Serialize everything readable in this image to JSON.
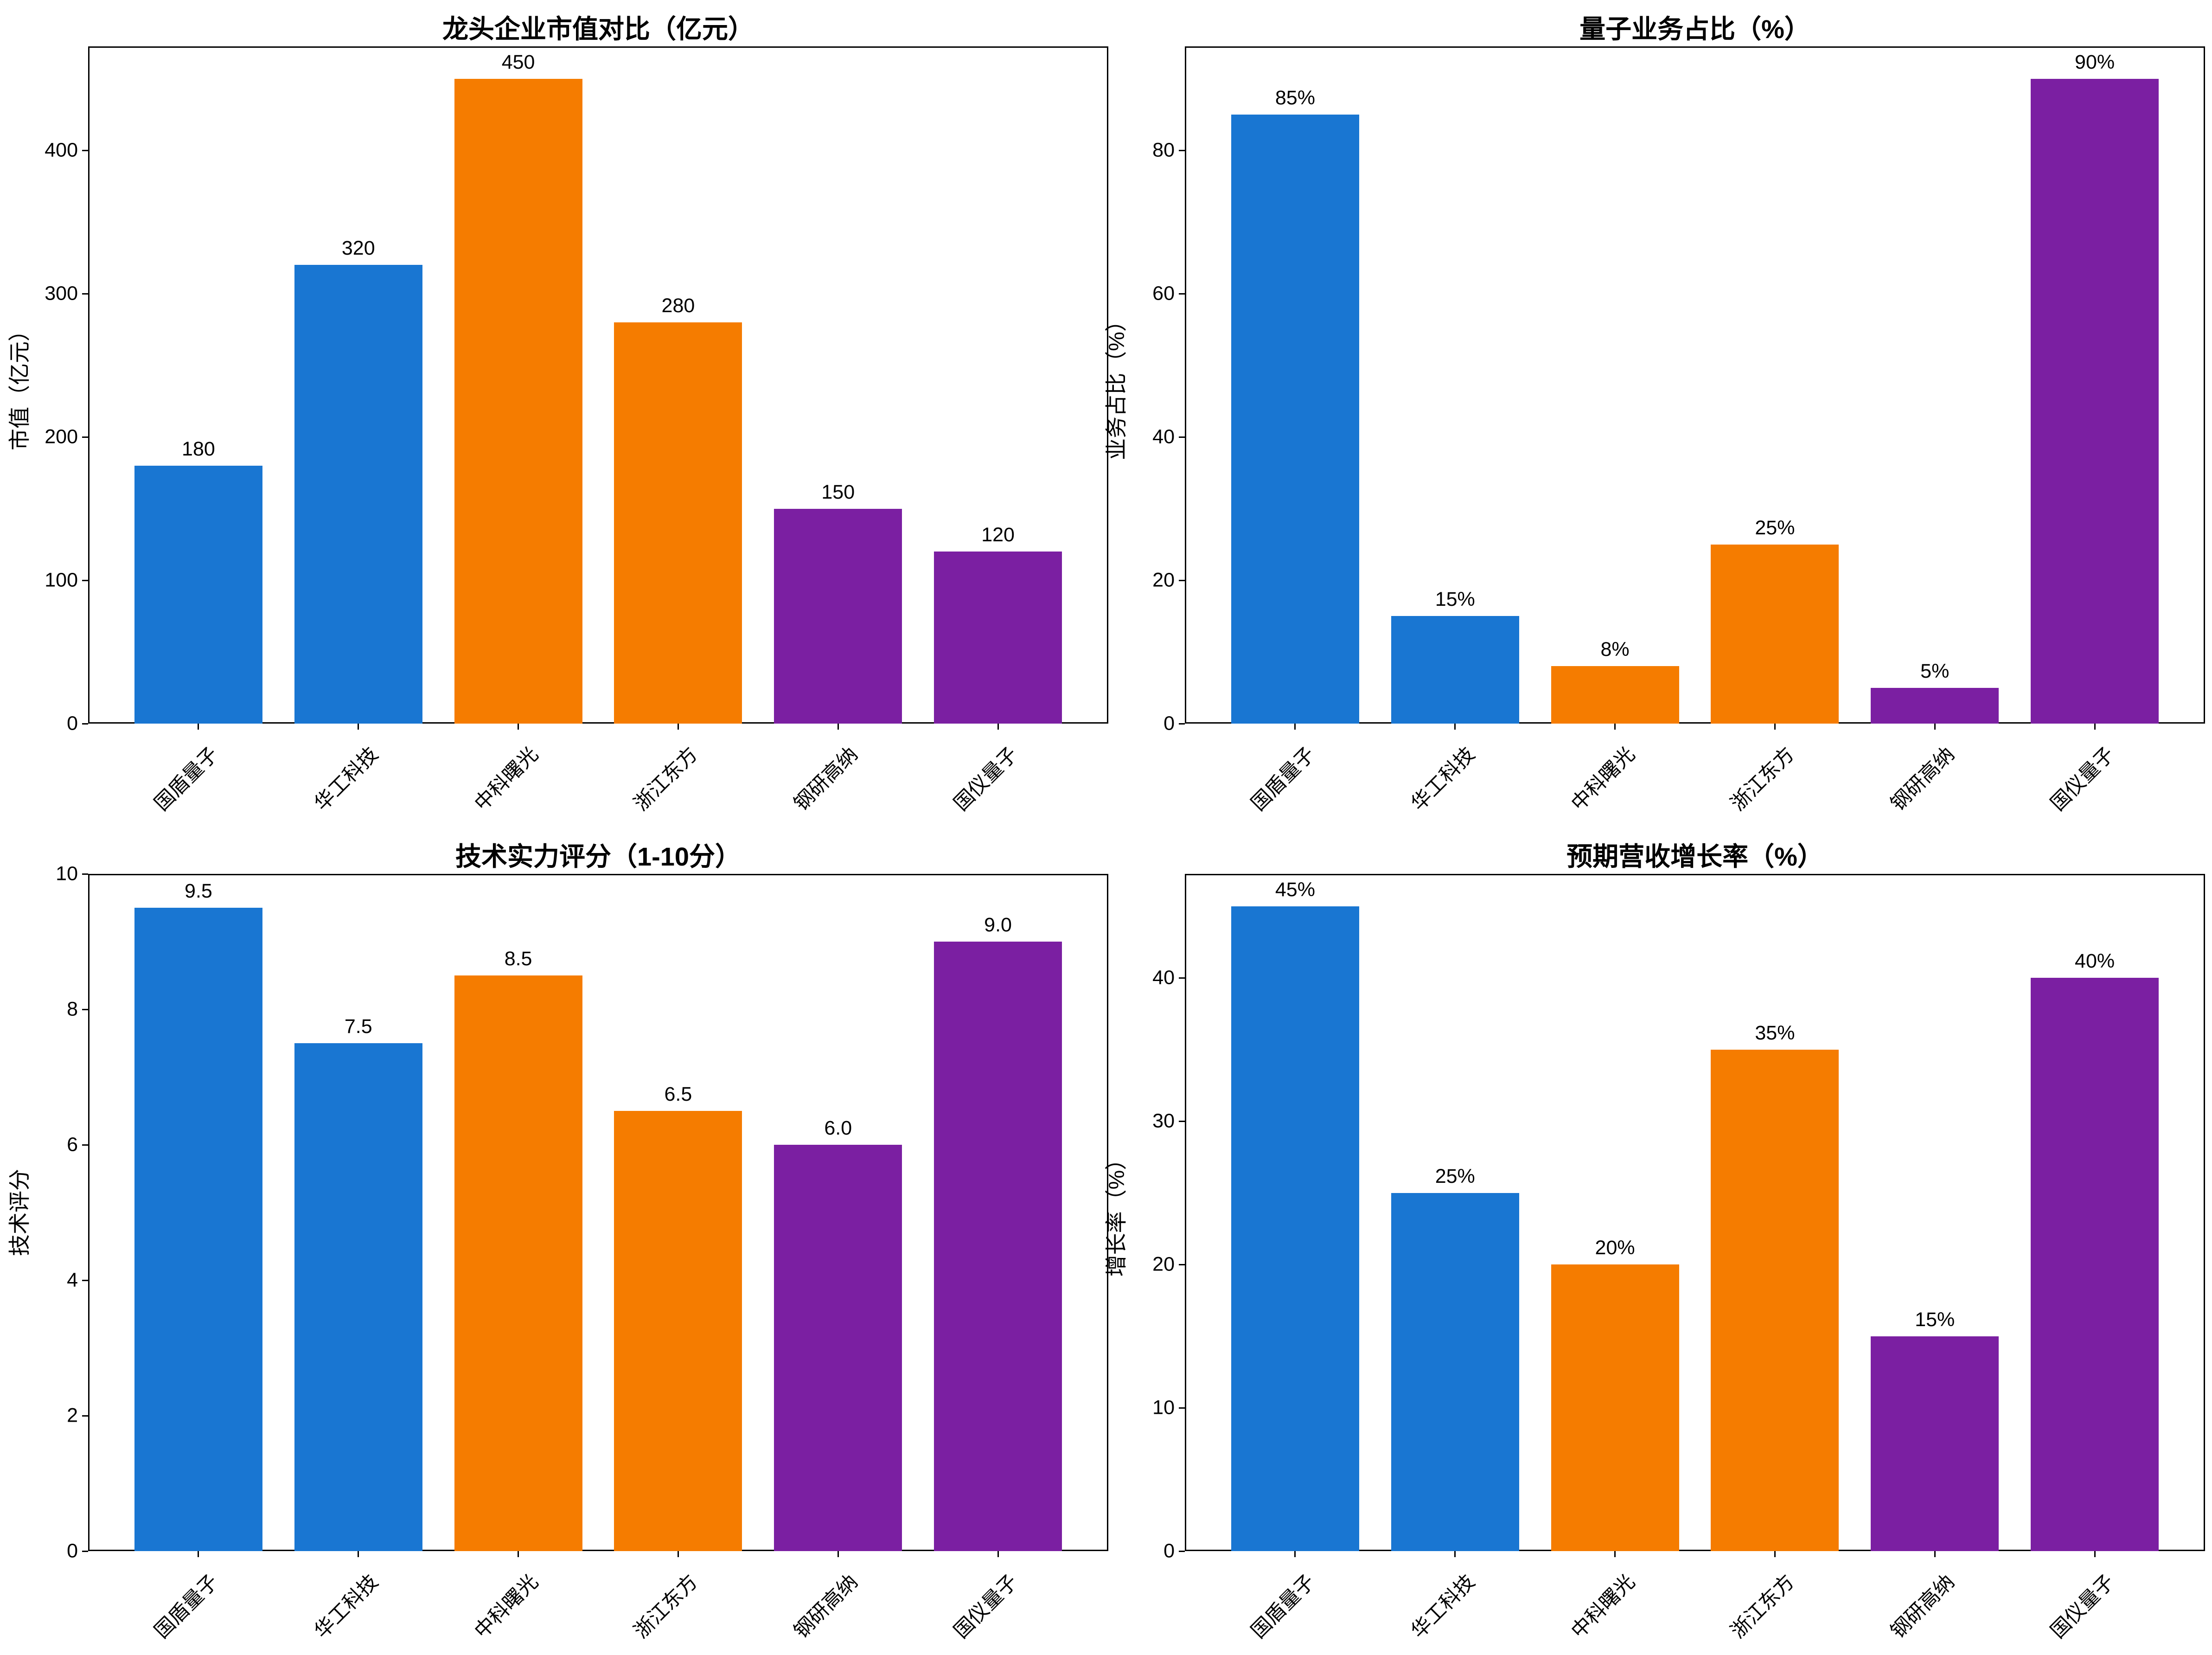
{
  "figure": {
    "background": "#ffffff",
    "axis_color": "#000000",
    "bar_colors": [
      "#1976D2",
      "#1976D2",
      "#F57C00",
      "#F57C00",
      "#7B1FA2",
      "#7B1FA2"
    ],
    "grid": false,
    "legend": false
  },
  "chart_data": [
    {
      "type": "bar",
      "title": "龙头企业市值对比（亿元）",
      "ylabel": "市值（亿元）",
      "xlabel": "",
      "categories": [
        "国盾量子",
        "华工科技",
        "中科曙光",
        "浙江东方",
        "钢研高纳",
        "国仪量子"
      ],
      "values": [
        180,
        320,
        450,
        280,
        150,
        120
      ],
      "value_labels": [
        "180",
        "320",
        "450",
        "280",
        "150",
        "120"
      ],
      "yticks": [
        0,
        100,
        200,
        300,
        400
      ],
      "ylim": [
        0,
        472.5
      ]
    },
    {
      "type": "bar",
      "title": "量子业务占比（%）",
      "ylabel": "业务占比（%）",
      "xlabel": "",
      "categories": [
        "国盾量子",
        "华工科技",
        "中科曙光",
        "浙江东方",
        "钢研高纳",
        "国仪量子"
      ],
      "values": [
        85,
        15,
        8,
        25,
        5,
        90
      ],
      "value_labels": [
        "85%",
        "15%",
        "8%",
        "25%",
        "5%",
        "90%"
      ],
      "yticks": [
        0,
        20,
        40,
        60,
        80
      ],
      "ylim": [
        0,
        94.5
      ]
    },
    {
      "type": "bar",
      "title": "技术实力评分（1-10分）",
      "ylabel": "技术评分",
      "xlabel": "",
      "categories": [
        "国盾量子",
        "华工科技",
        "中科曙光",
        "浙江东方",
        "钢研高纳",
        "国仪量子"
      ],
      "values": [
        9.5,
        7.5,
        8.5,
        6.5,
        6.0,
        9.0
      ],
      "value_labels": [
        "9.5",
        "7.5",
        "8.5",
        "6.5",
        "6.0",
        "9.0"
      ],
      "yticks": [
        0,
        2,
        4,
        6,
        8,
        10
      ],
      "ylim": [
        0,
        10
      ]
    },
    {
      "type": "bar",
      "title": "预期营收增长率（%）",
      "ylabel": "增长率（%）",
      "xlabel": "",
      "categories": [
        "国盾量子",
        "华工科技",
        "中科曙光",
        "浙江东方",
        "钢研高纳",
        "国仪量子"
      ],
      "values": [
        45,
        25,
        20,
        35,
        15,
        40
      ],
      "value_labels": [
        "45%",
        "25%",
        "20%",
        "35%",
        "15%",
        "40%"
      ],
      "yticks": [
        0,
        10,
        20,
        30,
        40
      ],
      "ylim": [
        0,
        47.25
      ]
    }
  ]
}
